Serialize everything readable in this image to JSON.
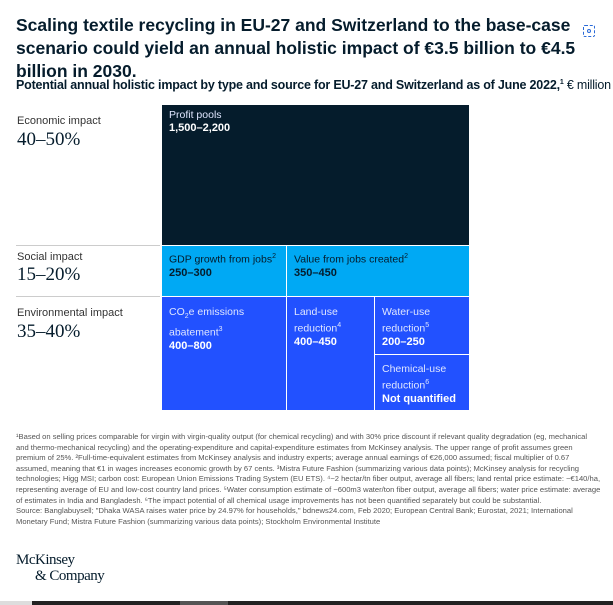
{
  "title": "Scaling textile recycling in EU-27 and Switzerland to the base-case scenario could yield an annual holistic impact of €3.5 billion to €4.5 billion in 2030.",
  "subtitle": "Potential annual holistic impact by type and source for EU-27 and Switzerland as of June 2022,",
  "subtitle_sup": "1",
  "unit": "€ million",
  "chart_data": {
    "type": "treemap",
    "groups": [
      {
        "label": "Economic impact",
        "share": "40–50%",
        "color": "#051c2c",
        "items": [
          {
            "label": "Profit pools",
            "value": "1,500–2,200"
          }
        ]
      },
      {
        "label": "Social impact",
        "share": "15–20%",
        "color": "#00a9f4",
        "items": [
          {
            "label": "GDP growth from jobs",
            "sup": "2",
            "value": "250–300"
          },
          {
            "label": "Value from jobs created",
            "sup": "2",
            "value": "350–450"
          }
        ]
      },
      {
        "label": "Environmental impact",
        "share": "35–40%",
        "color": "#2251ff",
        "items": [
          {
            "label_a": "CO",
            "label_sub": "2",
            "label_b": "e emissions abatement",
            "sup": "3",
            "value": "400–800"
          },
          {
            "label": "Land-use reduction",
            "sup": "4",
            "value": "400–450"
          },
          {
            "label": "Water-use reduction",
            "sup": "5",
            "value": "200–250"
          },
          {
            "label": "Chemical-use reduction",
            "sup": "6",
            "value": "Not quantified"
          }
        ]
      }
    ]
  },
  "notes": "¹Based on selling prices comparable for virgin with virgin-quality output (for chemical recycling) and with 30% price discount if relevant quality degradation (eg, mechanical and thermo-mechanical recycling) and the operating-expenditure and capital-expenditure estimates from McKinsey analysis. The upper range of profit assumes green premium of 25%. ²Full-time-equivalent estimates from McKinsey analysis and industry experts; average annual earnings of €26,000 assumed; fiscal multiplier of 0.67 assumed, meaning that €1 in wages increases economic growth by 67 cents. ³Mistra Future Fashion (summarizing various data points); McKinsey analysis for recycling technologies; Higg MSI; carbon cost: European Union Emissions Trading System (EU ETS). ⁴~2 hectar/tn fiber output, average all fibers; land rental price estimate: ~€140/ha, representing average of EU and low-cost country land prices. ⁵Water consumption estimate of ~600m3 water/ton fiber output, average all fibers; water price estimate: average of estimates in India and Bangladesh. ⁶The impact potential of all chemical usage improvements has not been quantified separately but could be substantial.",
  "source": "Source: Banglabuysell; \"Dhaka WASA raises water price by 24.97% for households,\" bdnews24.com, Feb 2020; European Central Bank; Eurostat, 2021; International Monetary Fund; Mistra Future Fashion (summarizing various data points); Stockholm Environmental Institute",
  "logo": {
    "line1": "McKinsey",
    "line2": "& Company"
  }
}
